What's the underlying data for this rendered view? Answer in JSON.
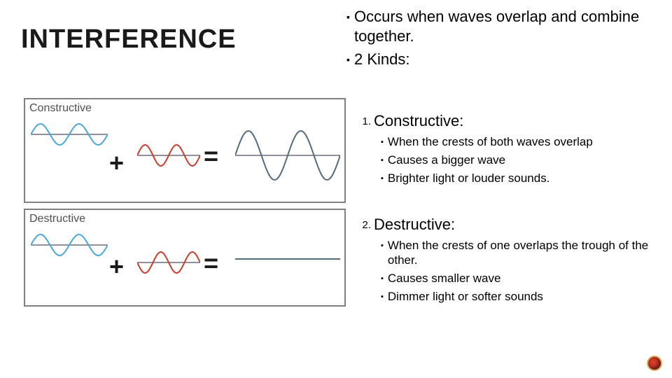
{
  "title": "INTERFERENCE",
  "title_color": "#1a1a1a",
  "title_fontsize": 38,
  "intro": [
    "Occurs when waves overlap and combine together.",
    "2 Kinds:"
  ],
  "kinds": [
    {
      "num": "1.",
      "label": "Constructive:",
      "points": [
        "When the crests of both waves overlap",
        "Causes a bigger wave",
        "Brighter light or louder sounds."
      ]
    },
    {
      "num": "2.",
      "label": "Destructive:",
      "points": [
        "When the crests of one overlaps the trough of the other.",
        "Causes smaller wave",
        "Dimmer light or softer sounds"
      ]
    }
  ],
  "diagram": {
    "constructive": {
      "box_label": "Constructive",
      "plus": "+",
      "equals": "=",
      "wave_a": {
        "amplitude": 15,
        "cycles": 2,
        "color": "#4aa8d8",
        "phase": 0
      },
      "wave_b": {
        "amplitude": 15,
        "cycles": 2,
        "color": "#cc3d2d",
        "phase": 0
      },
      "result": {
        "amplitude": 35,
        "cycles": 2,
        "color": "#556b7a",
        "phase": 0
      },
      "axis_color": "#6b6b80"
    },
    "destructive": {
      "box_label": "Destructive",
      "plus": "+",
      "equals": "=",
      "wave_a": {
        "amplitude": 15,
        "cycles": 2,
        "color": "#4aa8d8",
        "phase": 0
      },
      "wave_b": {
        "amplitude": 15,
        "cycles": 2,
        "color": "#cc3d2d",
        "phase": 3.14159
      },
      "result": {
        "amplitude": 0,
        "cycles": 2,
        "color": "#556b7a",
        "phase": 0
      },
      "axis_color": "#6b6b80"
    },
    "border_color": "#808080",
    "background_color": "#ffffff"
  },
  "slide_bg": "#ffffff",
  "corner_marker": {
    "fill": "#e04030",
    "ring": "#d4b060"
  }
}
